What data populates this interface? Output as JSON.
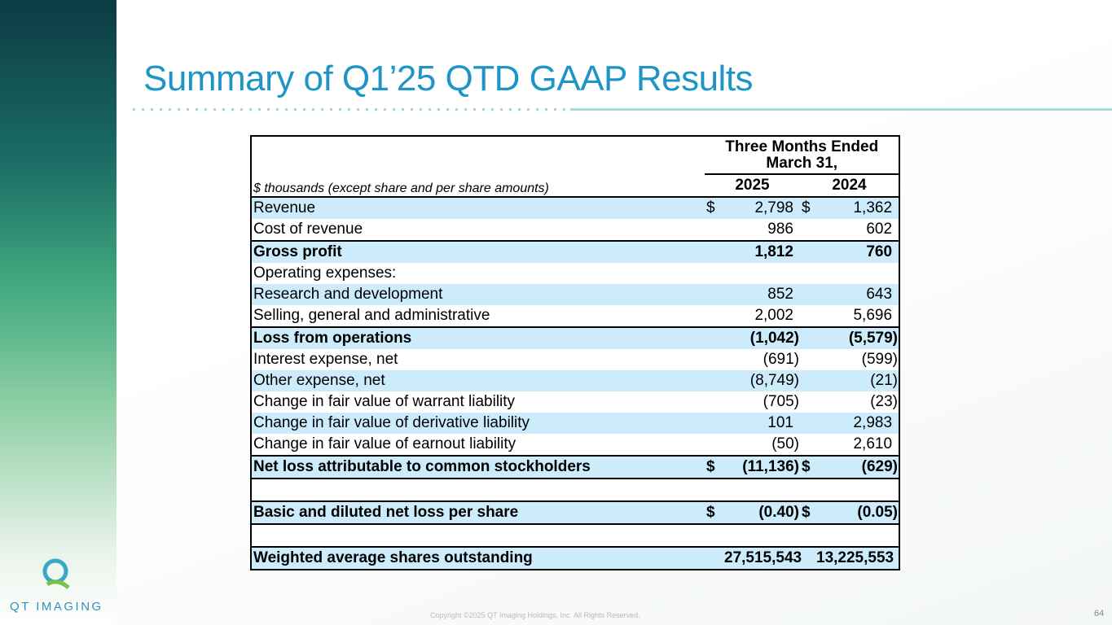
{
  "title": "Summary of Q1’25 QTD GAAP Results",
  "table": {
    "period_header": "Three Months Ended March 31,",
    "units_note": "$ thousands (except share and per share amounts)",
    "columns": [
      "2025",
      "2024"
    ],
    "rows": [
      {
        "label": "Revenue",
        "cur_2025": "$",
        "v2025": "2,798",
        "cur_2024": "$",
        "v2024": "1,362"
      },
      {
        "label": "Cost of revenue",
        "v2025": "986",
        "v2024": "602"
      },
      {
        "label": "Gross profit",
        "v2025": "1,812",
        "v2024": "760"
      },
      {
        "label": "Operating expenses:"
      },
      {
        "label": "Research and development",
        "v2025": "852",
        "v2024": "643"
      },
      {
        "label": "Selling, general and administrative",
        "v2025": "2,002",
        "v2024": "5,696"
      },
      {
        "label": "Loss from operations",
        "v2025": "(1,042)",
        "v2024": "(5,579)"
      },
      {
        "label": "Interest expense, net",
        "v2025": "(691)",
        "v2024": "(599)"
      },
      {
        "label": "Other expense, net",
        "v2025": "(8,749)",
        "v2024": "(21)"
      },
      {
        "label": "Change in fair value of warrant liability",
        "v2025": "(705)",
        "v2024": "(23)"
      },
      {
        "label": "Change in fair value of derivative liability",
        "v2025": "101",
        "v2024": "2,983"
      },
      {
        "label": "Change in fair value of earnout liability",
        "v2025": "(50)",
        "v2024": "2,610"
      },
      {
        "label": "Net loss attributable to common stockholders",
        "cur_2025": "$",
        "v2025": "(11,136)",
        "cur_2024": "$",
        "v2024": "(629)"
      },
      {
        "label": "Basic and diluted net loss per share",
        "cur_2025": "$",
        "v2025": "(0.40)",
        "cur_2024": "$",
        "v2024": "(0.05)"
      },
      {
        "label": "Weighted average shares outstanding",
        "v2025": "27,515,543",
        "v2024": "13,225,553"
      }
    ]
  },
  "logo": "QT IMAGING",
  "footer": "Copyright ©2025 QT Imaging Holdings, Inc. All Rights Reserved.",
  "page_number": "64"
}
